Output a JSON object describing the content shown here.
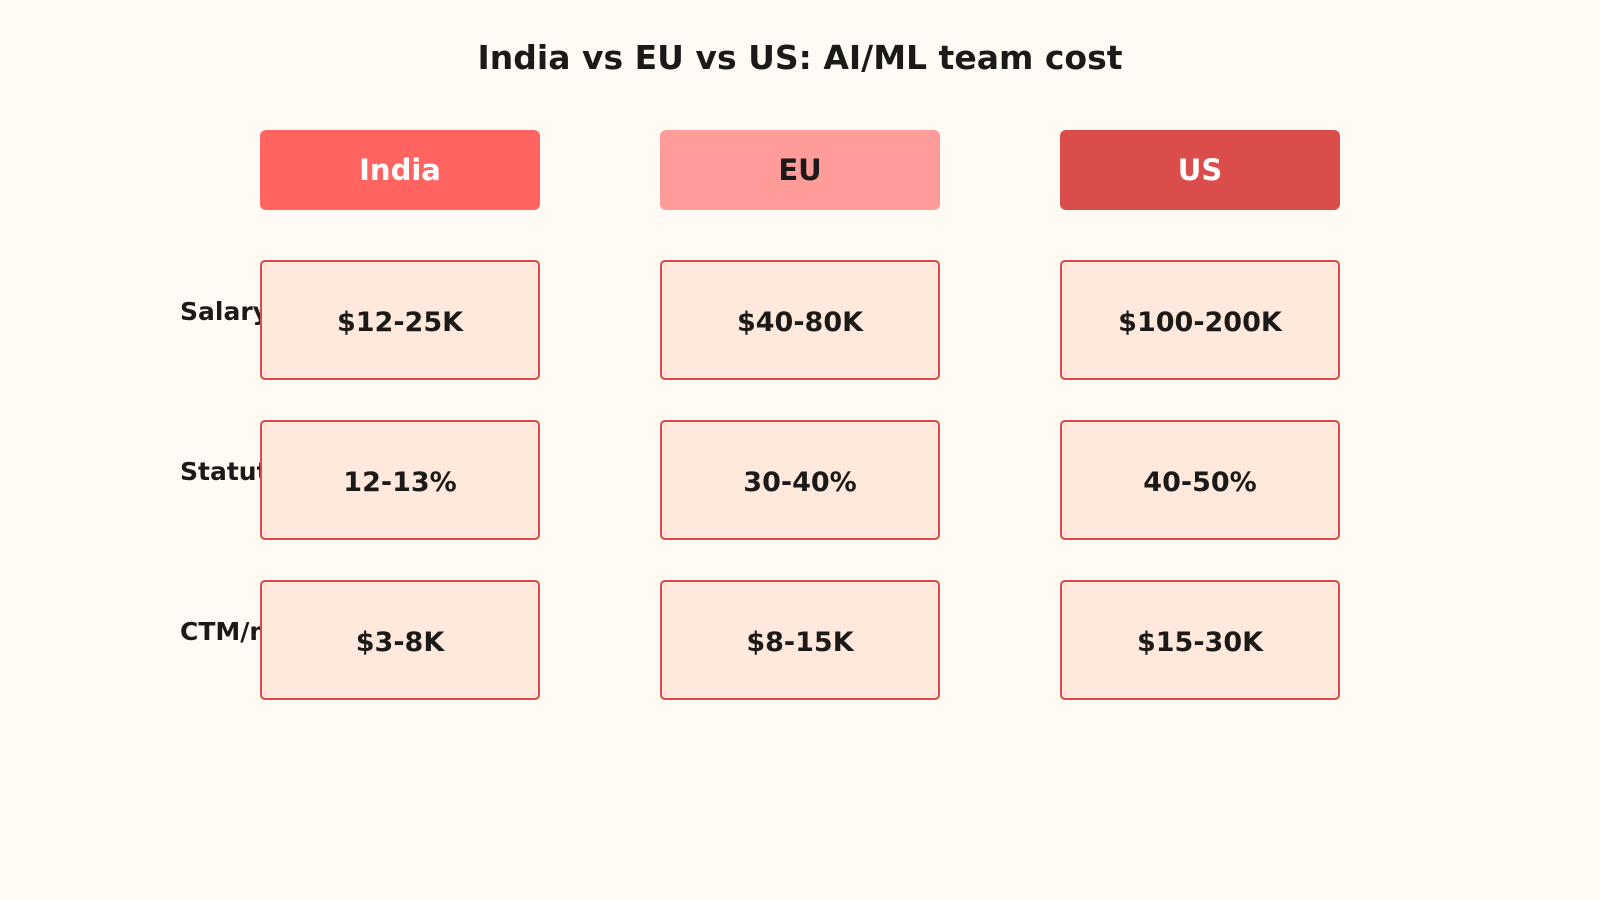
{
  "title": "India vs EU vs US: AI/ML team cost",
  "colors": {
    "background": "#fffbf4",
    "india_header": "#ff6461",
    "eu_header": "#ff9b99",
    "us_header": "#db4d4b",
    "cell_fill": "#ffe8dc",
    "cell_border": "#d94a4a"
  },
  "columns": [
    {
      "label": "India",
      "color": "#ff6461",
      "text_color": "#ffffff"
    },
    {
      "label": "EU",
      "color": "#ff9b99",
      "text_color": "#1c1a18"
    },
    {
      "label": "US",
      "color": "#db4d4b",
      "text_color": "#ffffff"
    }
  ],
  "rows": [
    {
      "label": "Salary",
      "values": [
        "$12-25K",
        "$40-80K",
        "$100-200K"
      ]
    },
    {
      "label": "Statutory",
      "values": [
        "12-13%",
        "30-40%",
        "40-50%"
      ]
    },
    {
      "label": "CTM/mo",
      "values": [
        "$3-8K",
        "$8-15K",
        "$15-30K"
      ]
    }
  ]
}
